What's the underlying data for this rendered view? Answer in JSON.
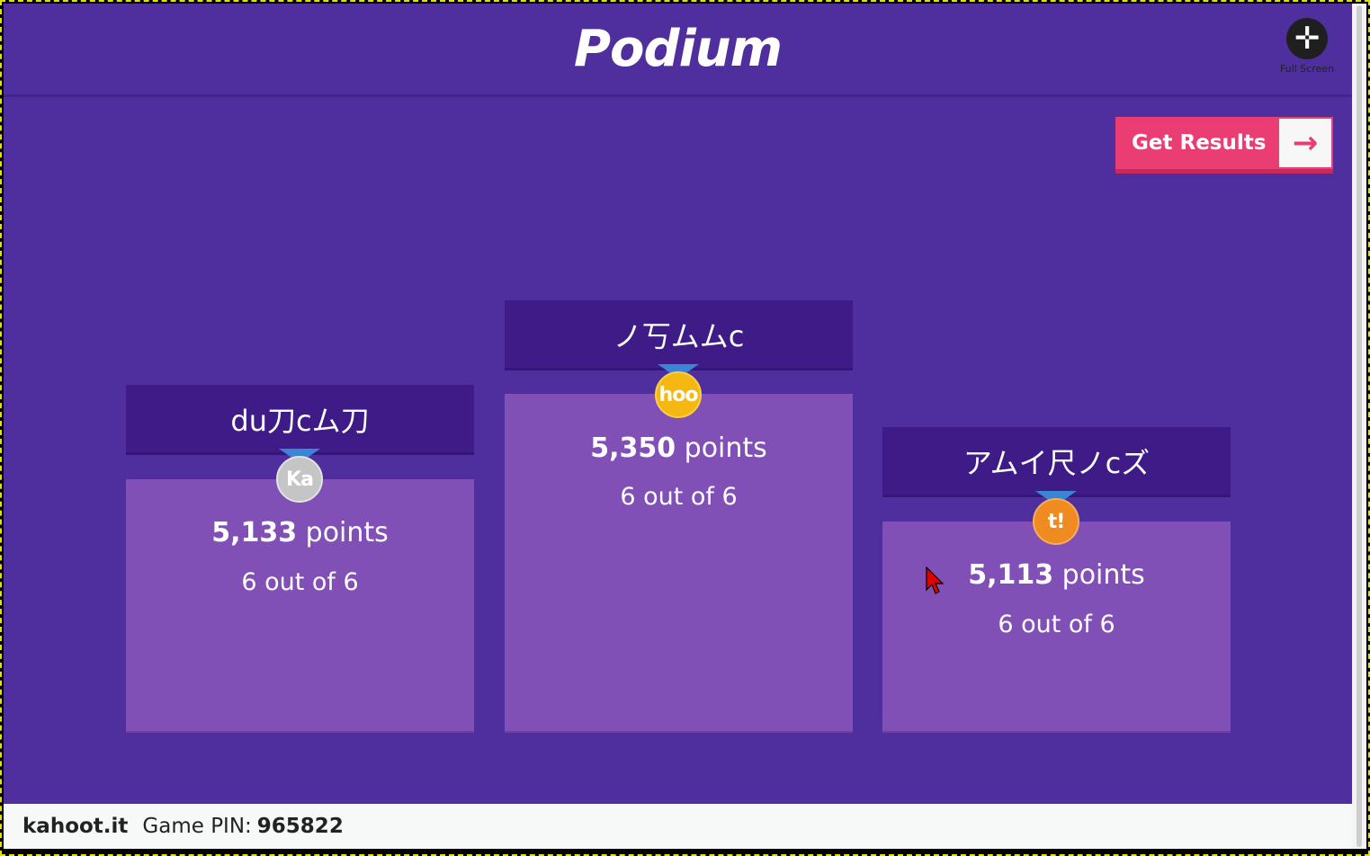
{
  "header": {
    "title": "Podium",
    "fullscreen_label": "Full Screen",
    "fullscreen_icon": "expand-icon"
  },
  "results_button": {
    "label": "Get Results",
    "icon": "arrow-right-icon"
  },
  "podium": {
    "first": {
      "name": "ノ丂ムムc",
      "medal_text": "hoo",
      "medal_color": "#f5b711",
      "points_value": "5,350",
      "points_suffix": "points",
      "correct": "6 out of 6"
    },
    "second": {
      "name": "du刀cム刀",
      "medal_text": "Ka",
      "medal_color": "#c5c5c5",
      "points_value": "5,133",
      "points_suffix": "points",
      "correct": "6 out of 6"
    },
    "third": {
      "name": "アムイ尺ノcズ",
      "medal_text": "t!",
      "medal_color": "#f08b21",
      "points_value": "5,113",
      "points_suffix": "points",
      "correct": "6 out of 6"
    }
  },
  "footer": {
    "brand": "kahoot.it",
    "pin_label": "Game PIN:",
    "pin_value": "965822"
  },
  "colors": {
    "background": "#4f2f9e",
    "nameplate": "#3e1b86",
    "block": "#8150b6",
    "accent": "#ea3d74",
    "ribbon": "#3a86d4"
  }
}
